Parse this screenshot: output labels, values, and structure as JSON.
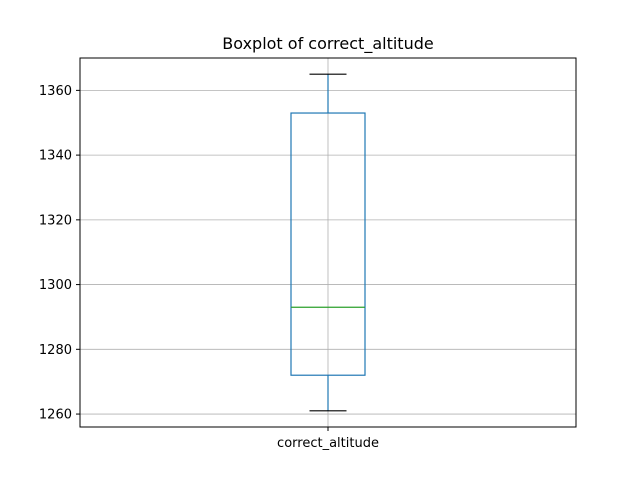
{
  "chart_data": {
    "type": "boxplot",
    "title": "Boxplot of correct_altitude",
    "categories": [
      "correct_altitude"
    ],
    "series": [
      {
        "whisker_low": 1261,
        "q1": 1272,
        "median": 1293,
        "q3": 1353,
        "whisker_high": 1365
      }
    ],
    "ylim": [
      1256,
      1370
    ],
    "yticks": [
      1260,
      1280,
      1300,
      1320,
      1340,
      1360
    ],
    "grid": true,
    "colors": {
      "box": "#1f77b4",
      "median": "#2ca02c",
      "cap": "#000000",
      "grid": "#b0b0b0"
    }
  }
}
